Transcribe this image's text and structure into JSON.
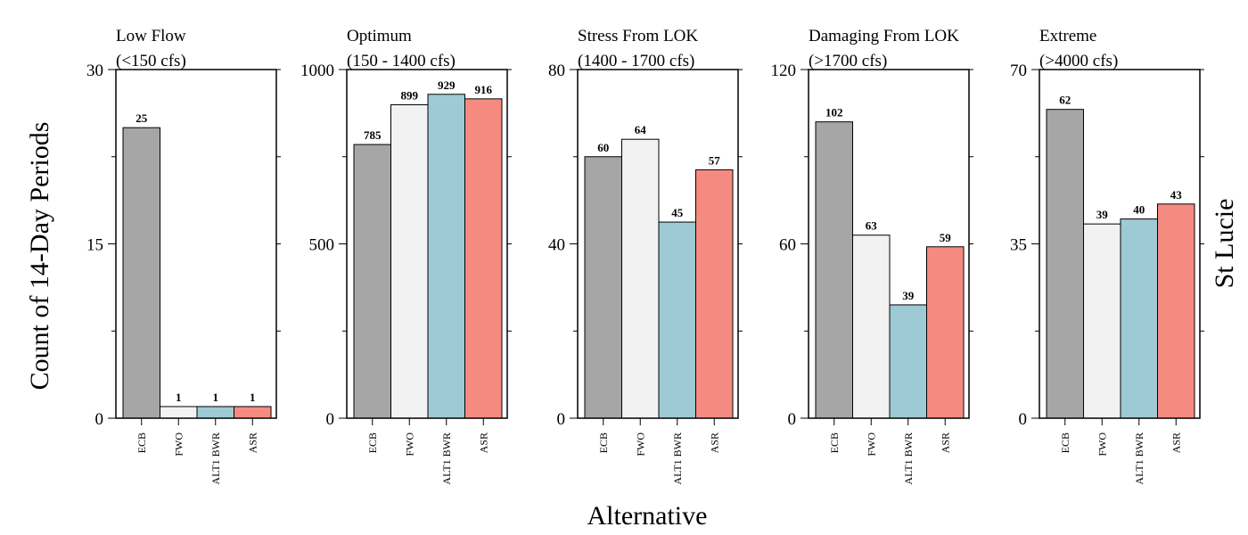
{
  "ylabel": "Count of 14-Day Periods",
  "xlabel": "Alternative",
  "side_label": "St Lucie",
  "colors": {
    "ECB": "#a6a6a6",
    "FWO": "#f2f2f2",
    "ALT1 BWR": "#9ecad6",
    "ASR": "#f58b80"
  },
  "chart_data": [
    {
      "type": "bar",
      "title": "Low Flow",
      "subtitle": "(<150 cfs)",
      "categories": [
        "ECB",
        "FWO",
        "ALT1 BWR",
        "ASR"
      ],
      "values": [
        25,
        1,
        1,
        1
      ],
      "ylim": [
        0,
        30
      ],
      "yticks": [
        0,
        15,
        30
      ]
    },
    {
      "type": "bar",
      "title": "Optimum",
      "subtitle": "(150 - 1400 cfs)",
      "categories": [
        "ECB",
        "FWO",
        "ALT1 BWR",
        "ASR"
      ],
      "values": [
        785,
        899,
        929,
        916
      ],
      "ylim": [
        0,
        1000
      ],
      "yticks": [
        0,
        500,
        1000
      ]
    },
    {
      "type": "bar",
      "title": "Stress From LOK",
      "subtitle": "(1400 - 1700 cfs)",
      "categories": [
        "ECB",
        "FWO",
        "ALT1 BWR",
        "ASR"
      ],
      "values": [
        60,
        64,
        45,
        57
      ],
      "ylim": [
        0,
        80
      ],
      "yticks": [
        0,
        40,
        80
      ]
    },
    {
      "type": "bar",
      "title": "Damaging From LOK",
      "subtitle": "(>1700 cfs)",
      "categories": [
        "ECB",
        "FWO",
        "ALT1 BWR",
        "ASR"
      ],
      "values": [
        102,
        63,
        39,
        59
      ],
      "ylim": [
        0,
        120
      ],
      "yticks": [
        0,
        60,
        120
      ]
    },
    {
      "type": "bar",
      "title": "Extreme",
      "subtitle": "(>4000 cfs)",
      "categories": [
        "ECB",
        "FWO",
        "ALT1 BWR",
        "ASR"
      ],
      "values": [
        62,
        39,
        40,
        43
      ],
      "ylim": [
        0,
        70
      ],
      "yticks": [
        0,
        35,
        70
      ]
    }
  ]
}
